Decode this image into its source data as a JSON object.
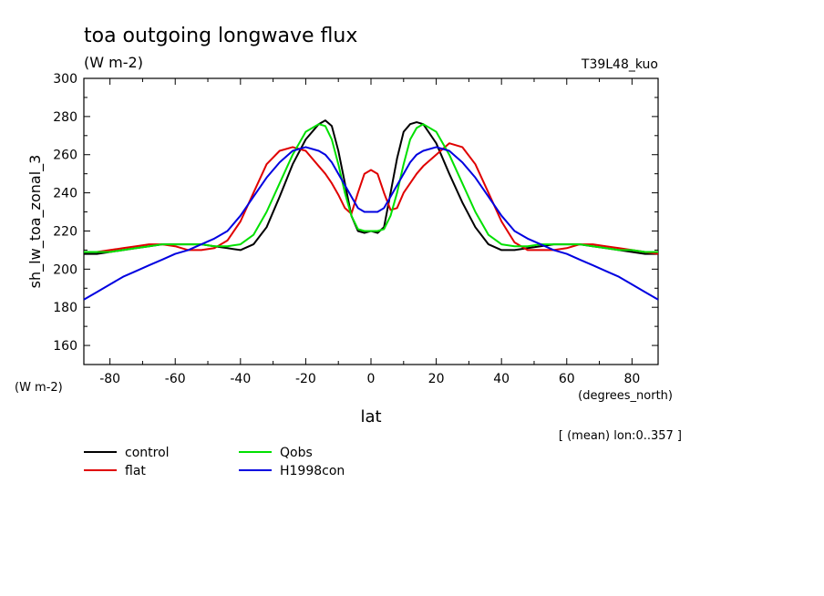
{
  "chart_data": {
    "type": "line",
    "title": "toa outgoing longwave flux",
    "subtitle": "(W m-2)",
    "run_label": "T39L48_kuo",
    "ylabel": "sh_lw_toa_zonal_3",
    "yunit_left": "(W m-2)",
    "xlabel": "lat",
    "xunit": "(degrees_north)",
    "note": "[ (mean) lon:0..357 ]",
    "xlim": [
      -88,
      88
    ],
    "ylim": [
      150,
      300
    ],
    "xticks": [
      -80,
      -60,
      -40,
      -20,
      0,
      20,
      40,
      60,
      80
    ],
    "yticks": [
      160,
      180,
      200,
      220,
      240,
      260,
      280,
      300
    ],
    "x": [
      -88,
      -84,
      -80,
      -76,
      -72,
      -68,
      -64,
      -60,
      -56,
      -52,
      -48,
      -44,
      -40,
      -36,
      -32,
      -28,
      -24,
      -20,
      -16,
      -14,
      -12,
      -10,
      -8,
      -6,
      -4,
      -2,
      0,
      2,
      4,
      6,
      8,
      10,
      12,
      14,
      16,
      20,
      24,
      28,
      32,
      36,
      40,
      44,
      48,
      52,
      56,
      60,
      64,
      68,
      72,
      76,
      80,
      84,
      88
    ],
    "series": [
      {
        "name": "control",
        "color": "#000000",
        "values": [
          208,
          208,
          209,
          210,
          211,
          212,
          213,
          213,
          213,
          213,
          212,
          211,
          210,
          213,
          222,
          238,
          255,
          268,
          276,
          278,
          275,
          262,
          245,
          228,
          220,
          219,
          220,
          219,
          222,
          240,
          258,
          272,
          276,
          277,
          276,
          266,
          250,
          235,
          222,
          213,
          210,
          210,
          211,
          212,
          213,
          213,
          213,
          212,
          211,
          210,
          209,
          208,
          208
        ]
      },
      {
        "name": "flat",
        "color": "#e00000",
        "values": [
          209,
          209,
          210,
          211,
          212,
          213,
          213,
          212,
          210,
          210,
          211,
          215,
          225,
          240,
          255,
          262,
          264,
          262,
          254,
          250,
          245,
          239,
          232,
          229,
          240,
          250,
          252,
          250,
          240,
          231,
          232,
          240,
          245,
          250,
          254,
          260,
          266,
          264,
          255,
          240,
          225,
          214,
          210,
          210,
          210,
          211,
          213,
          213,
          212,
          211,
          210,
          209,
          208
        ]
      },
      {
        "name": "Qobs",
        "color": "#00e000",
        "values": [
          209,
          209,
          209,
          210,
          211,
          212,
          213,
          213,
          213,
          213,
          212,
          212,
          213,
          218,
          230,
          245,
          260,
          272,
          276,
          275,
          268,
          255,
          240,
          228,
          221,
          220,
          220,
          220,
          221,
          228,
          240,
          255,
          268,
          274,
          276,
          272,
          260,
          245,
          230,
          218,
          213,
          212,
          212,
          213,
          213,
          213,
          213,
          212,
          211,
          210,
          210,
          209,
          209
        ]
      },
      {
        "name": "H1998con",
        "color": "#0000e0",
        "values": [
          184,
          188,
          192,
          196,
          199,
          202,
          205,
          208,
          210,
          213,
          216,
          220,
          228,
          238,
          248,
          256,
          262,
          264,
          262,
          260,
          256,
          250,
          244,
          238,
          232,
          230,
          230,
          230,
          232,
          238,
          244,
          250,
          256,
          260,
          262,
          264,
          262,
          256,
          248,
          238,
          228,
          220,
          216,
          213,
          210,
          208,
          205,
          202,
          199,
          196,
          192,
          188,
          184
        ]
      }
    ]
  }
}
